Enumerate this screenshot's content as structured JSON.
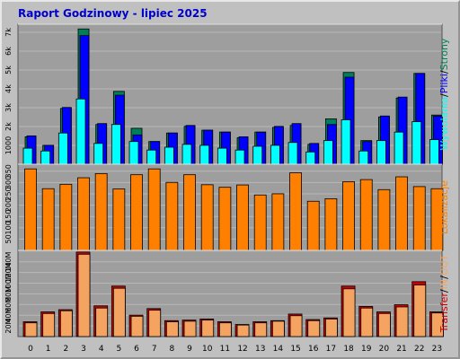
{
  "title": "Raport Godzinowy -  lipiec 2025",
  "colors": {
    "background": "#c0c0c0",
    "panel": "#9e9e9e",
    "grid": "#b8b8b8",
    "strony": "#00805a",
    "pliki": "#0000ff",
    "wywolania": "#00ffff",
    "lokalizacje": "#ff8000",
    "transfer": "#cc0000",
    "in": "#f4a460",
    "out": "#f4a460"
  },
  "chart_data": [
    {
      "type": "bar",
      "categories": [
        "0",
        "1",
        "2",
        "3",
        "4",
        "5",
        "6",
        "7",
        "8",
        "9",
        "10",
        "11",
        "12",
        "13",
        "14",
        "15",
        "16",
        "17",
        "18",
        "19",
        "20",
        "21",
        "22",
        "23"
      ],
      "series": [
        {
          "name": "Strony",
          "values": [
            1450,
            1000,
            2950,
            7150,
            2100,
            3850,
            1900,
            1200,
            1650,
            2000,
            1800,
            1700,
            1400,
            1700,
            1950,
            2050,
            1050,
            2400,
            4850,
            1250,
            2500,
            3500,
            4800,
            2600
          ]
        },
        {
          "name": "Pliki",
          "values": [
            1500,
            1000,
            3000,
            6800,
            2150,
            3650,
            1550,
            1200,
            1650,
            2050,
            1800,
            1700,
            1450,
            1700,
            2000,
            2150,
            1100,
            2100,
            4600,
            1200,
            2550,
            3550,
            4800,
            2550
          ]
        },
        {
          "name": "Wywolania",
          "values": [
            850,
            700,
            1650,
            3450,
            1100,
            2100,
            1200,
            750,
            900,
            1050,
            1000,
            850,
            750,
            950,
            1000,
            1150,
            650,
            1250,
            2350,
            700,
            1250,
            1700,
            2250,
            1300
          ]
        }
      ],
      "yticks": [
        "1000",
        "2k",
        "3k",
        "4k",
        "5k",
        "6k",
        "7k"
      ],
      "ylim": [
        0,
        7400
      ],
      "side_label": [
        "Strony",
        "/",
        "Pliki",
        "/",
        "Wywolania"
      ]
    },
    {
      "type": "bar",
      "categories": [
        "0",
        "1",
        "2",
        "3",
        "4",
        "5",
        "6",
        "7",
        "8",
        "9",
        "10",
        "11",
        "12",
        "13",
        "14",
        "15",
        "16",
        "17",
        "18",
        "19",
        "20",
        "21",
        "22",
        "23"
      ],
      "series": [
        {
          "name": "Lokalizacje",
          "values": [
            350,
            265,
            284,
            312,
            330,
            264,
            325,
            350,
            292,
            325,
            282,
            271,
            281,
            238,
            243,
            333,
            211,
            222,
            295,
            304,
            261,
            316,
            274,
            265
          ]
        }
      ],
      "yticks": [
        "50",
        "100",
        "150",
        "200",
        "250",
        "300",
        "350"
      ],
      "ylim": [
        0,
        370
      ],
      "side_label": [
        "Lokalizacje"
      ]
    },
    {
      "type": "bar",
      "categories": [
        "0",
        "1",
        "2",
        "3",
        "4",
        "5",
        "6",
        "7",
        "8",
        "9",
        "10",
        "11",
        "12",
        "13",
        "14",
        "15",
        "16",
        "17",
        "18",
        "19",
        "20",
        "21",
        "22",
        "23"
      ],
      "series": [
        {
          "name": "Transfer",
          "values": [
            27,
            45,
            49,
            154,
            56,
            92,
            39,
            51,
            29,
            30,
            32,
            27,
            22,
            27,
            29,
            41,
            31,
            34,
            92,
            55,
            45,
            58,
            100,
            45
          ]
        },
        {
          "name": "IN",
          "values": [
            25,
            42,
            47,
            150,
            52,
            88,
            37,
            48,
            27,
            28,
            30,
            25,
            21,
            25,
            28,
            38,
            29,
            32,
            87,
            52,
            42,
            54,
            94,
            43
          ]
        }
      ],
      "yticks": [
        "20M",
        "40M",
        "60M",
        "80M",
        "100M",
        "120M",
        "140M"
      ],
      "ylim": [
        0,
        157
      ],
      "side_label": [
        "Transfer",
        "/",
        "IN",
        "/",
        "OUT"
      ]
    }
  ]
}
